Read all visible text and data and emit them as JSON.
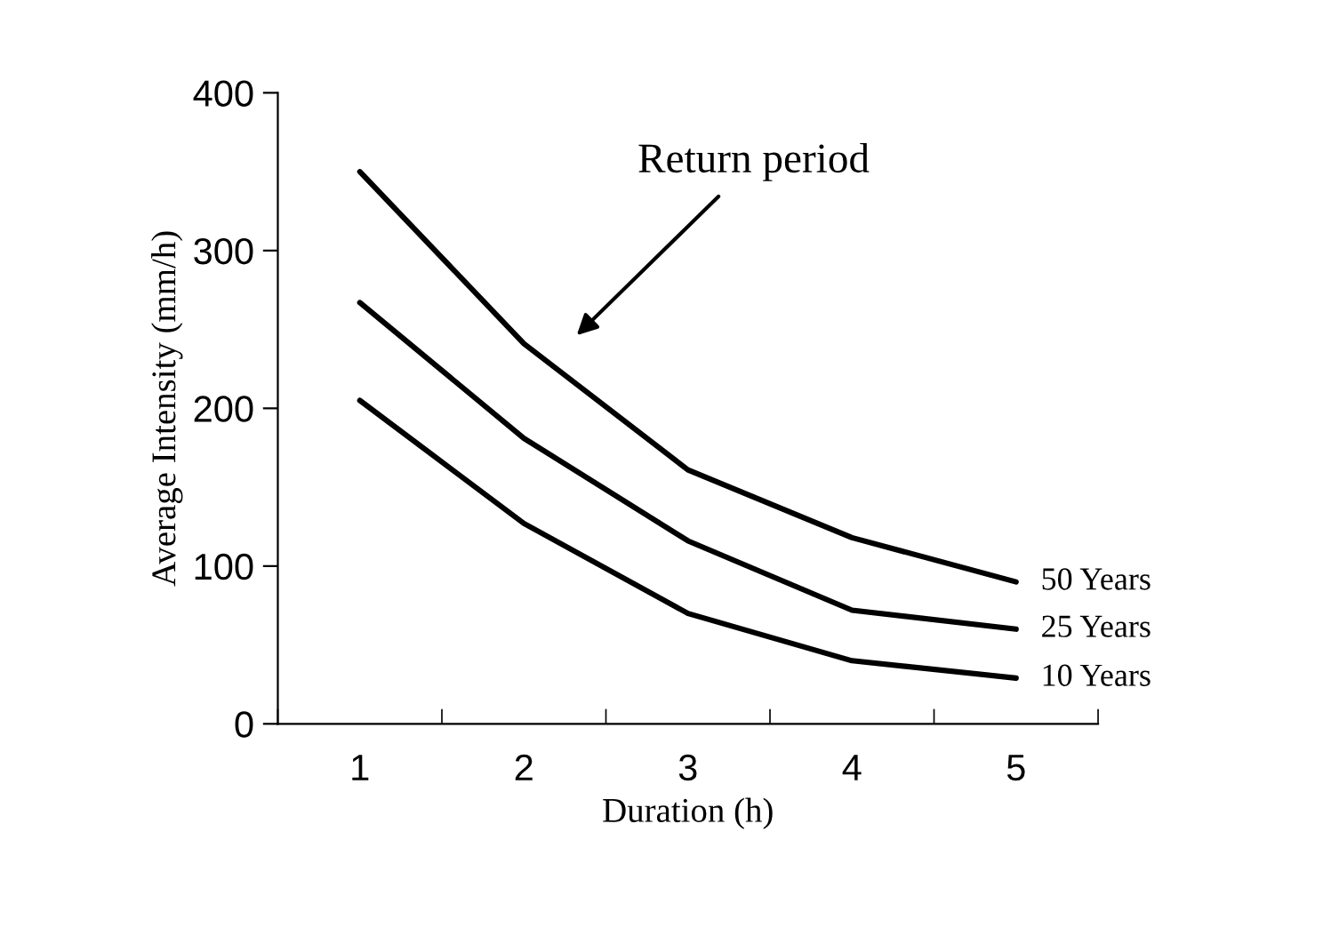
{
  "chart_data": {
    "type": "line",
    "xlabel": "Duration (h)",
    "ylabel": "Average Intensity (mm/h)",
    "categories": [
      "1",
      "2",
      "3",
      "4",
      "5"
    ],
    "series": [
      {
        "name": "50 Years",
        "color": "#000000",
        "values": [
          350,
          241,
          161,
          118,
          90
        ]
      },
      {
        "name": "25 Years",
        "color": "#000000",
        "values": [
          267,
          181,
          116,
          72,
          60
        ]
      },
      {
        "name": "10 Years",
        "color": "#000000",
        "values": [
          205,
          127,
          70,
          40,
          29
        ]
      }
    ],
    "ylim": [
      0,
      400
    ],
    "yticks": [
      0,
      100,
      200,
      300,
      400
    ],
    "annotations": [
      "Return period"
    ],
    "grid": false,
    "legend": false,
    "marker": "none",
    "line_style": "solid"
  }
}
